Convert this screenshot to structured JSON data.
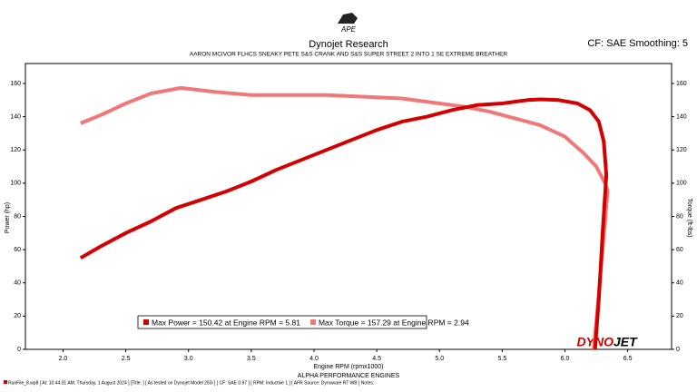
{
  "chart_data": {
    "type": "line",
    "logo": "APE",
    "title": "Dynojet Research",
    "subtitle": "AARON MCIVOR FLHCS SNEAKY PETE S&S CRANK AND S&S SUPER STREET 2 INTO 1 SE EXTREME BREATHER",
    "corner_note": "CF: SAE Smoothing: 5",
    "x_label": "Engine RPM (rpmx1000)",
    "y_label": "Power (hp)",
    "y2_label": "Torque (ft-lbs)",
    "caption": "ALPHA PERFORMANCE ENGINES",
    "watermark": [
      "DYNO",
      "JET"
    ],
    "footer": "RunFile_8.wp8 [ At: 10:44:31 AM, Thursday, 1 August 2024 ] [Title: ] [ As tested on Dynojet Model 250i ] [ CF: SAE 0.97 ] [ RPM: Inductive 1 ] [ AFR Source: Dynoware RT WB ] Notes:",
    "xlim": [
      1.7,
      6.85
    ],
    "ylim": [
      0,
      172
    ],
    "y2lim": [
      0,
      172
    ],
    "xticks": [
      {
        "value": 2,
        "label": "2.0"
      },
      {
        "value": 2.5,
        "label": "2.5"
      },
      {
        "value": 3,
        "label": "3.0"
      },
      {
        "value": 3.5,
        "label": "3.5"
      },
      {
        "value": 4,
        "label": "4.0"
      },
      {
        "value": 4.5,
        "label": "4.5"
      },
      {
        "value": 5,
        "label": "5.0"
      },
      {
        "value": 5.5,
        "label": "5.5"
      },
      {
        "value": 6,
        "label": "6.0"
      },
      {
        "value": 6.5,
        "label": "6.5"
      }
    ],
    "yticks": [
      0,
      20,
      40,
      60,
      80,
      100,
      120,
      140,
      160
    ],
    "y2ticks": [
      0,
      20,
      40,
      60,
      80,
      100,
      120,
      140,
      160
    ],
    "grid": false,
    "series": [
      {
        "name": "Max Power = 150.42 at Engine RPM = 5.81",
        "color": "#d40000",
        "x": [
          2.14,
          2.3,
          2.5,
          2.7,
          2.9,
          3.1,
          3.3,
          3.5,
          3.7,
          3.9,
          4.1,
          4.3,
          4.5,
          4.7,
          4.9,
          5.1,
          5.3,
          5.5,
          5.6,
          5.7,
          5.81,
          5.95,
          6.1,
          6.2,
          6.27,
          6.31,
          6.33,
          6.3,
          6.27,
          6.24
        ],
        "values": [
          55,
          62,
          70,
          77,
          85,
          90,
          95,
          101,
          108,
          114,
          120,
          126,
          132,
          137,
          140,
          144,
          147,
          148,
          149,
          150,
          150.42,
          150,
          148,
          144,
          137,
          125,
          105,
          70,
          30,
          0
        ]
      },
      {
        "name": "Max Torque = 157.29 at Engine RPM = 2.94",
        "color": "#f07878",
        "axis": "y2",
        "x": [
          2.14,
          2.3,
          2.5,
          2.7,
          2.94,
          3.2,
          3.5,
          3.8,
          4.1,
          4.4,
          4.7,
          5.0,
          5.2,
          5.4,
          5.6,
          5.8,
          6.0,
          6.15,
          6.25,
          6.32,
          6.34,
          6.3,
          6.26,
          6.23
        ],
        "values": [
          136,
          141,
          148,
          154,
          157.29,
          155,
          153,
          153,
          153,
          152,
          151,
          148,
          146,
          143,
          139,
          135,
          128,
          118,
          110,
          100,
          95,
          60,
          25,
          0
        ]
      }
    ]
  }
}
